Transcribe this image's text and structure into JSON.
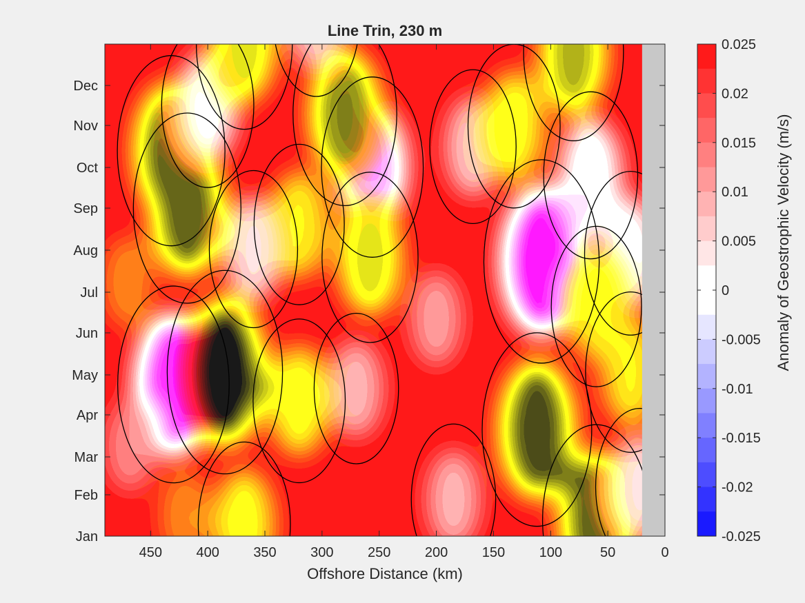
{
  "chart_data": {
    "type": "heatmap",
    "title": "Line Trin, 230 m",
    "xlabel": "Offshore Distance (km)",
    "ylabel": "",
    "xlim": [
      490,
      0
    ],
    "x_reversed": true,
    "x_ticks": [
      450,
      400,
      350,
      300,
      250,
      200,
      150,
      100,
      50,
      0
    ],
    "y_tick_labels": [
      "Jan",
      "Feb",
      "Mar",
      "Apr",
      "May",
      "Jun",
      "Jul",
      "Aug",
      "Sep",
      "Oct",
      "Nov",
      "Dec"
    ],
    "colorbar": {
      "label": "Anomaly of Geostrophic Velocity (m/s)",
      "range": [
        -0.025,
        0.025
      ],
      "tick_labels": [
        "0.025",
        "0.02",
        "0.015",
        "0.01",
        "0.005",
        "0",
        "-0.005",
        "-0.01",
        "-0.015",
        "-0.02",
        "-0.025"
      ],
      "levels": [
        -0.025,
        -0.0225,
        -0.02,
        -0.0175,
        -0.015,
        -0.0125,
        -0.01,
        -0.0075,
        -0.005,
        -0.0025,
        0,
        0.0025,
        0.005,
        0.0075,
        0.01,
        0.0125,
        0.015,
        0.0175,
        0.02,
        0.0225,
        0.025
      ],
      "colors": [
        "#0000ff",
        "#1a1aff",
        "#3333ff",
        "#4d4dff",
        "#6666ff",
        "#8080ff",
        "#9999ff",
        "#b3b3ff",
        "#ccccff",
        "#e6e6ff",
        "#ffffff",
        "#ffffff",
        "#ffe6e6",
        "#ffcccc",
        "#ffb3b3",
        "#ff9999",
        "#ff8080",
        "#ff6666",
        "#ff4d4d",
        "#ff3333",
        "#ff1a1a"
      ]
    },
    "no_data_region_km": [
      0,
      20
    ],
    "no_data_color": "#c8c8c8",
    "zero_contour": true,
    "anomaly_features": [
      {
        "x": 430,
        "month": 3.7,
        "value": 0.022
      },
      {
        "x": 432,
        "month": 9.4,
        "value": -0.02
      },
      {
        "x": 418,
        "month": 8.0,
        "value": -0.02
      },
      {
        "x": 385,
        "month": 4.0,
        "value": -0.024
      },
      {
        "x": 108,
        "month": 6.7,
        "value": 0.024
      },
      {
        "x": 112,
        "month": 2.6,
        "value": -0.021
      },
      {
        "x": 256,
        "month": 9.0,
        "value": 0.017
      },
      {
        "x": 280,
        "month": 10.3,
        "value": -0.018
      },
      {
        "x": 258,
        "month": 6.8,
        "value": -0.014
      },
      {
        "x": 400,
        "month": 10.5,
        "value": 0.012
      },
      {
        "x": 368,
        "month": 12.0,
        "value": -0.014
      },
      {
        "x": 320,
        "month": 3.3,
        "value": -0.012
      },
      {
        "x": 320,
        "month": 7.6,
        "value": -0.011
      },
      {
        "x": 65,
        "month": 8.8,
        "value": 0.013
      },
      {
        "x": 60,
        "month": 0.4,
        "value": -0.02
      },
      {
        "x": 30,
        "month": 6.9,
        "value": 0.012
      },
      {
        "x": 30,
        "month": 4.0,
        "value": -0.011
      },
      {
        "x": 80,
        "month": 11.8,
        "value": -0.016
      },
      {
        "x": 305,
        "month": 12.6,
        "value": 0.009
      },
      {
        "x": 168,
        "month": 9.5,
        "value": 0.009
      },
      {
        "x": 360,
        "month": 7.0,
        "value": 0.01
      },
      {
        "x": 132,
        "month": 10.0,
        "value": -0.012
      },
      {
        "x": 60,
        "month": 5.6,
        "value": -0.011
      },
      {
        "x": 270,
        "month": 3.6,
        "value": 0.008
      },
      {
        "x": 22,
        "month": 1.2,
        "value": 0.01
      },
      {
        "x": 185,
        "month": 0.9,
        "value": 0.008
      },
      {
        "x": 368,
        "month": 0.3,
        "value": -0.012
      },
      {
        "x": 470,
        "month": 6.2,
        "value": -0.006
      },
      {
        "x": 468,
        "month": 2.2,
        "value": 0.006
      },
      {
        "x": 200,
        "month": 5.3,
        "value": 0.007
      },
      {
        "x": 420,
        "month": 0.5,
        "value": -0.006
      }
    ]
  }
}
